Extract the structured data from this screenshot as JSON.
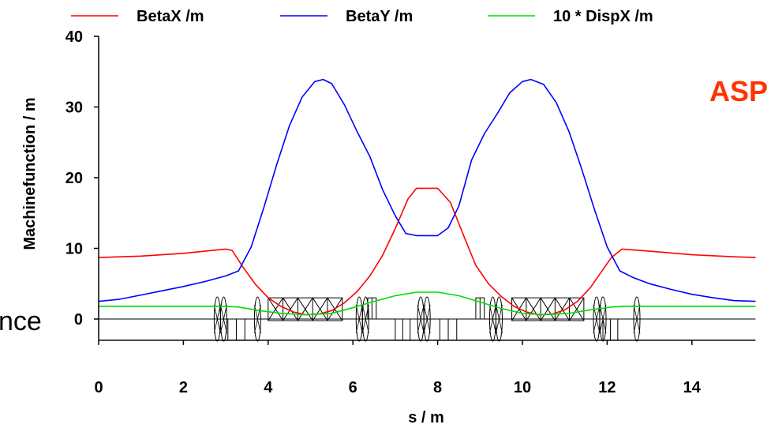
{
  "chart_data": {
    "type": "line",
    "xlabel": "s / m",
    "ylabel": "Machinefunction / m",
    "xlim": [
      0,
      15.5
    ],
    "ylim": [
      -3,
      40
    ],
    "xticks": [
      0,
      2,
      4,
      6,
      8,
      10,
      12,
      14
    ],
    "yticks": [
      0,
      10,
      20,
      30,
      40
    ],
    "grid": false,
    "legend_position": "top",
    "annotations": [
      {
        "text": "ASP",
        "color": "#ff3300"
      },
      {
        "text": "nce",
        "color": "#000000"
      }
    ],
    "series": [
      {
        "name": "BetaX /m",
        "color": "#ff0000",
        "x": [
          0,
          0.5,
          1,
          1.5,
          2,
          2.5,
          3,
          3.15,
          3.4,
          3.7,
          4.0,
          4.3,
          4.6,
          4.9,
          5.2,
          5.5,
          5.8,
          6.1,
          6.4,
          6.7,
          7.0,
          7.3,
          7.5,
          7.75,
          8.0,
          8.3,
          8.6,
          8.9,
          9.2,
          9.5,
          9.8,
          10.1,
          10.4,
          10.7,
          11.0,
          11.3,
          11.6,
          11.9,
          12.1,
          12.35,
          13,
          14,
          15,
          15.5
        ],
        "y": [
          8.7,
          8.8,
          8.9,
          9.1,
          9.3,
          9.6,
          9.9,
          9.7,
          7.4,
          4.9,
          3.0,
          1.8,
          1.0,
          0.6,
          0.7,
          1.2,
          2.3,
          3.9,
          6.1,
          9.0,
          12.8,
          17.0,
          18.5,
          18.5,
          18.5,
          16.5,
          12.0,
          7.6,
          5.0,
          3.2,
          1.8,
          1.0,
          0.6,
          0.7,
          1.3,
          2.5,
          4.4,
          7.0,
          8.7,
          9.9,
          9.6,
          9.1,
          8.8,
          8.7
        ]
      },
      {
        "name": "BetaY /m",
        "color": "#0000ff",
        "x": [
          0,
          0.5,
          1,
          1.5,
          2,
          2.5,
          3,
          3.3,
          3.6,
          3.9,
          4.2,
          4.5,
          4.8,
          5.1,
          5.3,
          5.5,
          5.8,
          6.1,
          6.4,
          6.7,
          7.0,
          7.25,
          7.5,
          7.75,
          8.0,
          8.25,
          8.5,
          8.8,
          9.1,
          9.4,
          9.7,
          10.0,
          10.2,
          10.5,
          10.8,
          11.1,
          11.4,
          11.7,
          12.0,
          12.3,
          12.6,
          13,
          13.5,
          14,
          14.5,
          15,
          15.5
        ],
        "y": [
          2.5,
          2.8,
          3.4,
          4.0,
          4.6,
          5.3,
          6.1,
          6.8,
          10.2,
          15.8,
          21.8,
          27.3,
          31.4,
          33.6,
          33.9,
          33.3,
          30.3,
          26.5,
          23.0,
          18.3,
          14.6,
          12.1,
          11.8,
          11.8,
          11.8,
          12.9,
          16.0,
          22.5,
          26.2,
          29.0,
          32.0,
          33.6,
          33.9,
          33.2,
          30.6,
          26.5,
          21.2,
          15.5,
          10.2,
          6.8,
          5.9,
          5.0,
          4.2,
          3.5,
          3.0,
          2.6,
          2.5
        ]
      },
      {
        "name": "10 * DispX /m",
        "color": "#00dd00",
        "x": [
          0,
          1,
          2,
          3,
          3.3,
          3.8,
          4.3,
          4.9,
          5.5,
          6.0,
          6.5,
          7.0,
          7.5,
          8.0,
          8.5,
          9.0,
          9.5,
          10.0,
          10.5,
          11.1,
          11.6,
          12.1,
          12.4,
          13,
          14,
          15,
          15.5
        ],
        "y": [
          1.8,
          1.8,
          1.8,
          1.8,
          1.7,
          1.2,
          0.8,
          0.6,
          0.8,
          1.6,
          2.5,
          3.3,
          3.8,
          3.8,
          3.3,
          2.4,
          1.5,
          0.8,
          0.6,
          0.8,
          1.3,
          1.7,
          1.8,
          1.8,
          1.8,
          1.8,
          1.8
        ]
      }
    ],
    "lattice": {
      "dipoles": [
        [
          4.0,
          5.75
        ],
        [
          9.75,
          11.45
        ]
      ],
      "lenses": [
        2.8,
        2.95,
        3.75,
        6.15,
        6.3,
        7.6,
        7.75,
        9.3,
        9.45,
        11.75,
        11.9,
        12.7
      ],
      "blocks_above": [
        [
          6.35,
          6.55
        ],
        [
          8.9,
          9.1
        ]
      ],
      "blocks_below": [
        [
          3.05,
          3.45
        ],
        [
          7.0,
          7.35
        ],
        [
          8.05,
          8.45
        ],
        [
          11.9,
          12.25
        ]
      ]
    }
  }
}
